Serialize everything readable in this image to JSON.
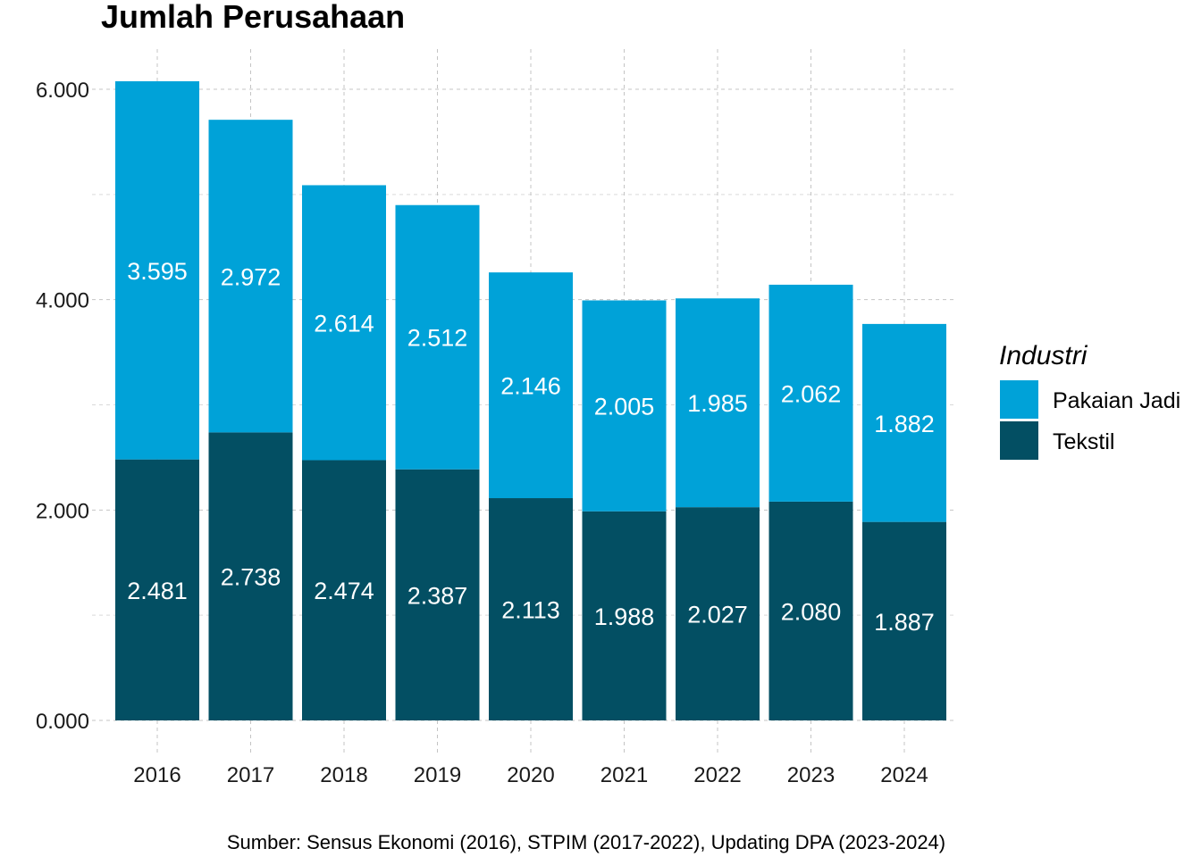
{
  "chart_data": {
    "type": "bar",
    "stacked": true,
    "title": "Jumlah Perusahaan",
    "caption": "Sumber: Sensus Ekonomi (2016), STPIM (2017-2022), Updating DPA (2023-2024)",
    "xlabel": "",
    "ylabel": "",
    "categories": [
      "2016",
      "2017",
      "2018",
      "2019",
      "2020",
      "2021",
      "2022",
      "2023",
      "2024"
    ],
    "series": [
      {
        "name": "Tekstil",
        "color": "#034F63",
        "values": [
          2481,
          2738,
          2474,
          2387,
          2113,
          1988,
          2027,
          2080,
          1887
        ],
        "labels": [
          "2.481",
          "2.738",
          "2.474",
          "2.387",
          "2.113",
          "1.988",
          "2.027",
          "2.080",
          "1.887"
        ]
      },
      {
        "name": "Pakaian Jadi",
        "color": "#00A2D8",
        "values": [
          3595,
          2972,
          2614,
          2512,
          2146,
          2005,
          1985,
          2062,
          1882
        ],
        "labels": [
          "3.595",
          "2.972",
          "2.614",
          "2.512",
          "2.146",
          "2.005",
          "1.985",
          "2.062",
          "1.882"
        ]
      }
    ],
    "ylim": [
      0,
      6000
    ],
    "yticks": [
      0,
      2000,
      4000,
      6000
    ],
    "ytick_labels": [
      "0.000",
      "2.000",
      "4.000",
      "6.000"
    ],
    "grid": true,
    "legend": {
      "title": "Industri",
      "position": "right",
      "entries": [
        "Pakaian Jadi",
        "Tekstil"
      ]
    }
  }
}
